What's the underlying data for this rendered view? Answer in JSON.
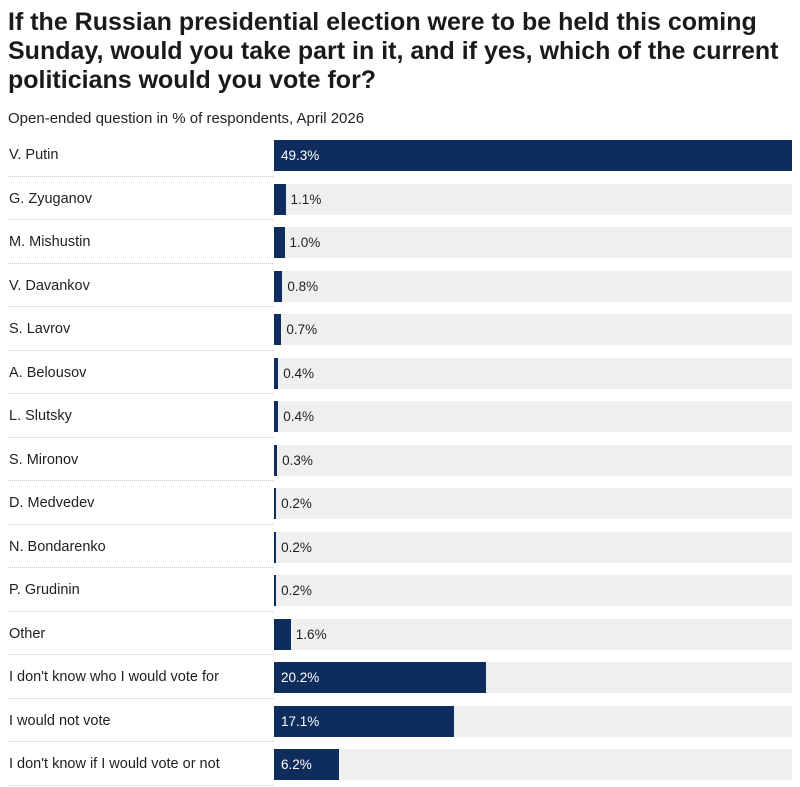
{
  "chart_data": {
    "type": "bar",
    "orientation": "horizontal",
    "title": "If the Russian presidential election were to be held this coming Sunday, would you take part in it, and if yes, which of the current politicians would you vote for?",
    "subtitle": "Open-ended question in % of respondents, April 2026",
    "categories": [
      "V. Putin",
      "G. Zyuganov",
      "M. Mishustin",
      "V. Davankov",
      "S. Lavrov",
      "A. Belousov",
      "L. Slutsky",
      "S. Mironov",
      "D. Medvedev",
      "N. Bondarenko",
      "P. Grudinin",
      "Other",
      "I don't know who I would vote for",
      "I would not vote",
      "I don't know if I would vote or not"
    ],
    "values": [
      49.3,
      1.1,
      1.0,
      0.8,
      0.7,
      0.4,
      0.4,
      0.3,
      0.2,
      0.2,
      0.2,
      1.6,
      20.2,
      17.1,
      6.2
    ],
    "value_labels": [
      "49.3%",
      "1.1%",
      "1.0%",
      "0.8%",
      "0.7%",
      "0.4%",
      "0.4%",
      "0.3%",
      "0.2%",
      "0.2%",
      "0.2%",
      "1.6%",
      "20.2%",
      "17.1%",
      "6.2%"
    ],
    "xlim": [
      0,
      49.3
    ],
    "grid": false,
    "legend": "none",
    "bar_color": "#0e2d5c",
    "track_color": "#efefef"
  }
}
